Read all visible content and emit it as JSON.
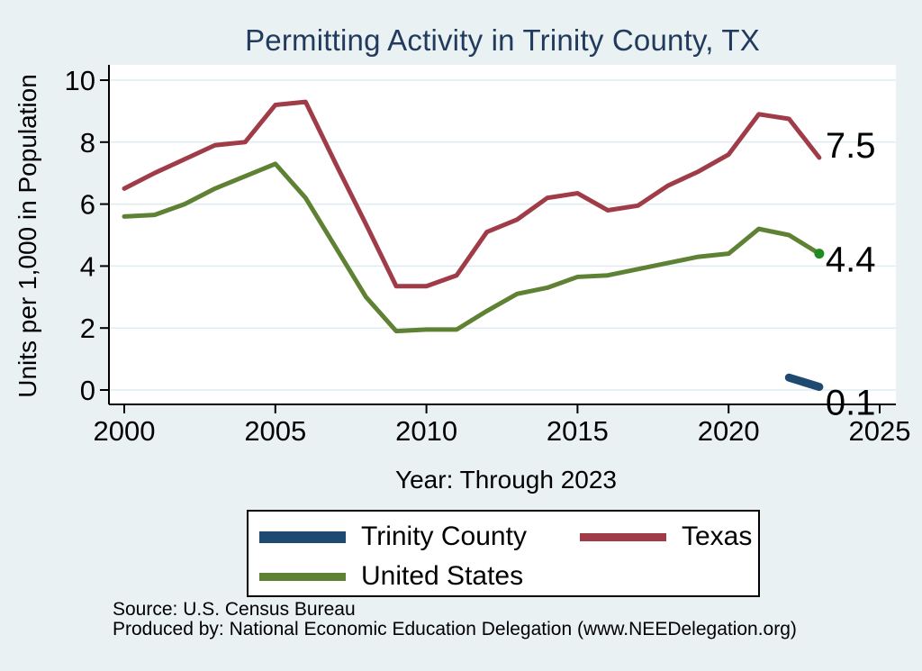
{
  "title": "Permitting Activity in Trinity County, TX",
  "chart_data": {
    "type": "line",
    "title": "Permitting Activity in Trinity County, TX",
    "xlabel": "Year: Through 2023",
    "ylabel": "Units per 1,000 in Population",
    "xlim": [
      2000,
      2025
    ],
    "ylim": [
      0,
      10
    ],
    "x_ticks": [
      2000,
      2005,
      2010,
      2015,
      2020,
      2025
    ],
    "y_ticks": [
      0,
      2,
      4,
      6,
      8,
      10
    ],
    "grid": true,
    "legend_position": "bottom",
    "background_color": "#e9f1f3",
    "plot_color": "#ffffff",
    "series": [
      {
        "name": "Trinity County",
        "color": "#1e4a72",
        "line_width": 9,
        "x": [
          2022,
          2023
        ],
        "values": [
          0.4,
          0.1
        ],
        "end_label": "0.1"
      },
      {
        "name": "Texas",
        "color": "#a03c48",
        "line_width": 5,
        "x": [
          2000,
          2001,
          2002,
          2003,
          2004,
          2005,
          2006,
          2007,
          2008,
          2009,
          2010,
          2011,
          2012,
          2013,
          2014,
          2015,
          2016,
          2017,
          2018,
          2019,
          2020,
          2021,
          2022,
          2023
        ],
        "values": [
          6.5,
          7.0,
          7.45,
          7.9,
          8.0,
          9.2,
          9.3,
          7.3,
          5.35,
          3.35,
          3.35,
          3.7,
          5.1,
          5.5,
          6.2,
          6.35,
          5.8,
          5.95,
          6.6,
          7.05,
          7.6,
          8.9,
          8.75,
          7.5
        ],
        "end_label": "7.5"
      },
      {
        "name": "United States",
        "color": "#5e8134",
        "line_width": 5,
        "x": [
          2000,
          2001,
          2002,
          2003,
          2004,
          2005,
          2006,
          2007,
          2008,
          2009,
          2010,
          2011,
          2012,
          2013,
          2014,
          2015,
          2016,
          2017,
          2018,
          2019,
          2020,
          2021,
          2022,
          2023
        ],
        "values": [
          5.6,
          5.65,
          6.0,
          6.5,
          6.9,
          7.3,
          6.2,
          4.6,
          3.0,
          1.9,
          1.95,
          1.95,
          2.55,
          3.1,
          3.3,
          3.65,
          3.7,
          3.9,
          4.1,
          4.3,
          4.4,
          5.2,
          5.0,
          4.4
        ],
        "end_label": "4.4",
        "end_marker_color": "#1e8c1e"
      }
    ]
  },
  "footer": {
    "source": "Source: U.S. Census Bureau",
    "produced_by": "Produced by: National Economic Education Delegation (www.NEEDelegation.org)"
  }
}
